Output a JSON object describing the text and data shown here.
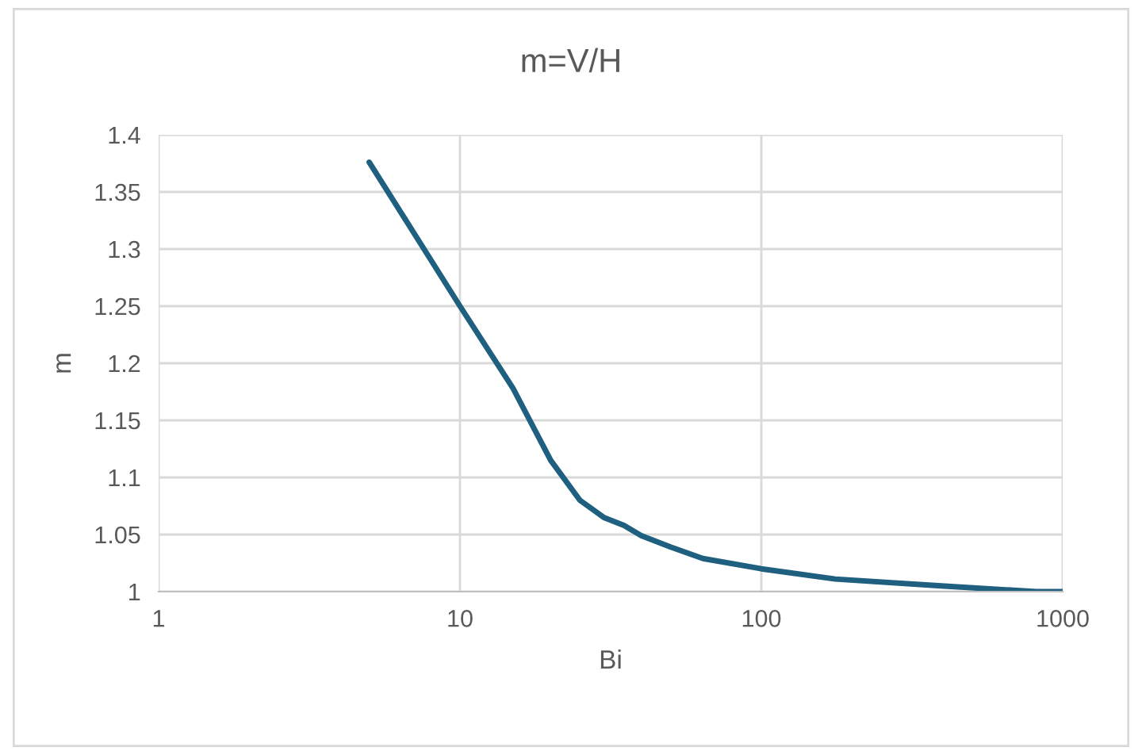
{
  "chart_data": {
    "type": "line",
    "title": "m=V/H",
    "xlabel": "Bi",
    "ylabel": "m",
    "x": [
      5,
      10,
      15,
      20,
      25,
      30,
      35,
      40,
      50,
      64,
      100,
      176,
      395,
      817,
      1000
    ],
    "series": [
      {
        "color": "#1f5f7f",
        "values": [
          1.376,
          1.25,
          1.178,
          1.115,
          1.08,
          1.065,
          1.058,
          1.049,
          1.039,
          1.029,
          1.02,
          1.011,
          1.005,
          1.0,
          1.0
        ]
      }
    ],
    "log": "x",
    "xlim": [
      1,
      1000
    ],
    "xticks": [
      1,
      10,
      100,
      1000
    ],
    "ylim": [
      1,
      1.4
    ],
    "yticks": [
      1,
      1.05,
      1.1,
      1.15,
      1.2,
      1.25,
      1.3,
      1.35,
      1.4
    ],
    "grid": true,
    "legend": false,
    "marker": "none",
    "line_style": "solid"
  }
}
